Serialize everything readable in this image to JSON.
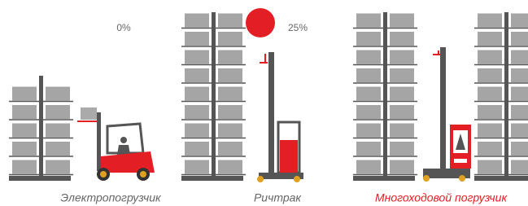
{
  "percent_labels": [
    "0%",
    "25%"
  ],
  "captions": [
    "Электропогрузчик",
    "Ричтрак",
    "Многоходовой погрузчик"
  ]
}
